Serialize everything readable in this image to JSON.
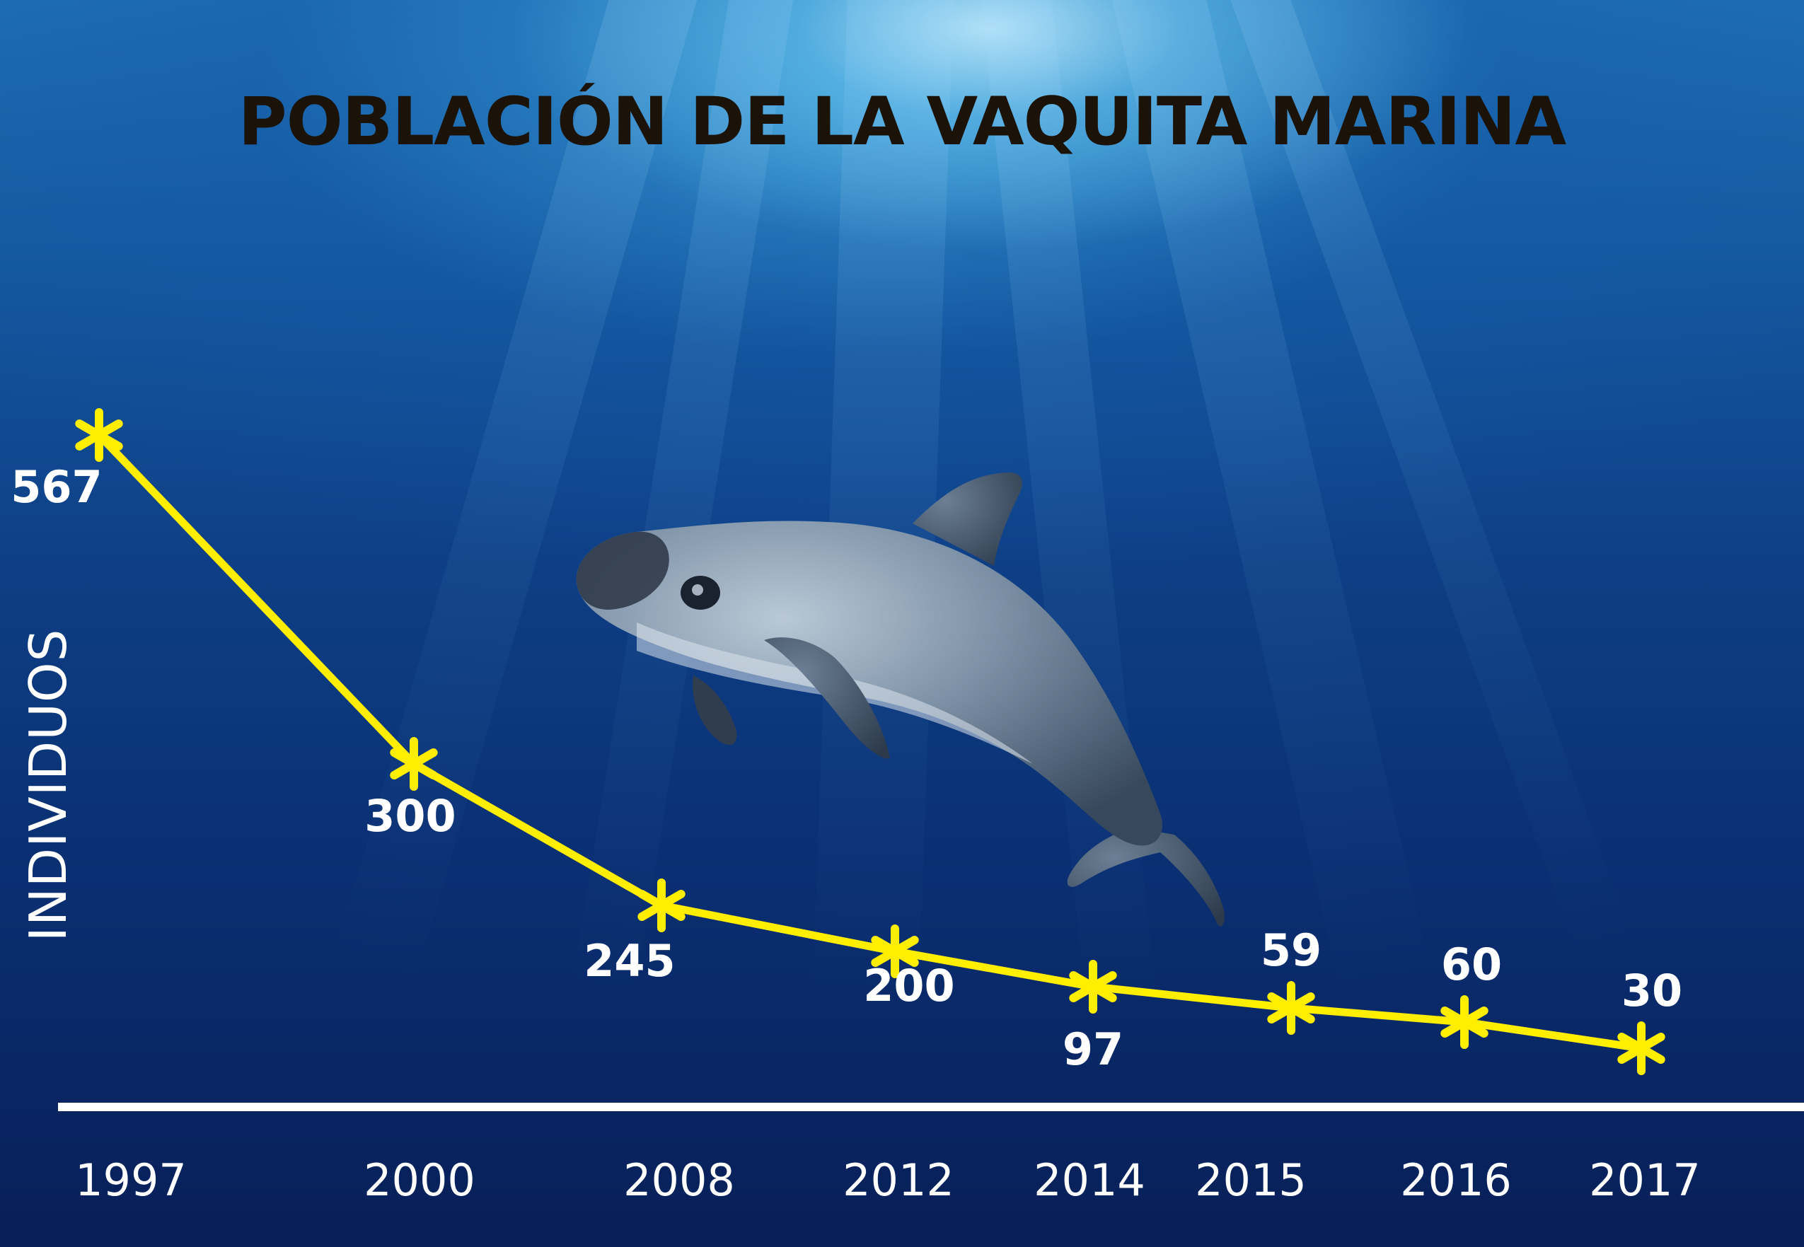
{
  "chart_data": {
    "type": "line",
    "title": "POBLACIÓN DE LA VAQUITA MARINA",
    "xlabel": "",
    "ylabel": "INDIVIDUOS",
    "categories": [
      "1997",
      "2000",
      "2008",
      "2012",
      "2014",
      "2015",
      "2016",
      "2017"
    ],
    "values": [
      567,
      300,
      245,
      200,
      97,
      59,
      60,
      30
    ],
    "ylim": [
      0,
      600
    ],
    "grid": false,
    "legend": "none",
    "marker": "star",
    "line_color": "#ffee00",
    "label_color": "#ffffff",
    "axis_color": "#ffffff"
  },
  "background": {
    "scene": "underwater",
    "subject": "vaquita porpoise"
  }
}
